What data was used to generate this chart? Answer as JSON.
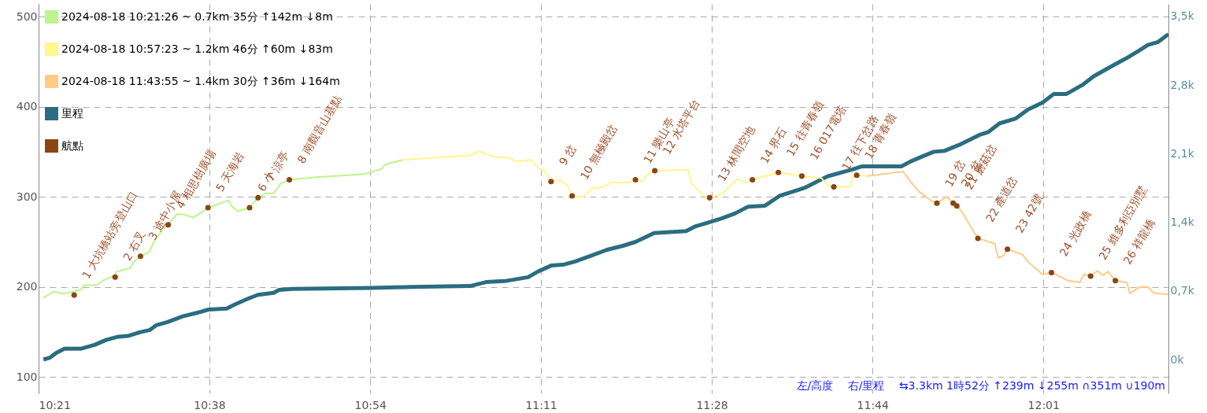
{
  "chart_data": {
    "type": "line",
    "xlim": [
      10.35,
      12.224
    ],
    "xticks": [
      {
        "value": 10.35,
        "label": "10:21"
      },
      {
        "value": 10.6333,
        "label": "10:38"
      },
      {
        "value": 10.9,
        "label": "10:54"
      },
      {
        "value": 11.1833,
        "label": "11:11"
      },
      {
        "value": 11.4667,
        "label": "11:28"
      },
      {
        "value": 11.7333,
        "label": "11:44"
      },
      {
        "value": 12.0167,
        "label": "12:01"
      }
    ],
    "ylim": [
      82,
      514
    ],
    "yticks": [
      100,
      200,
      300,
      400,
      500
    ],
    "y2lim": [
      -345,
      3628
    ],
    "y2ticks": [
      {
        "value": 0,
        "label": "0k"
      },
      {
        "value": 700,
        "label": "0,7k"
      },
      {
        "value": 1400,
        "label": "1,4k"
      },
      {
        "value": 2100,
        "label": "2,1k"
      },
      {
        "value": 2800,
        "label": "2,8k"
      },
      {
        "value": 3500,
        "label": "3,5k"
      }
    ],
    "grid": true,
    "legend": "top left",
    "annotations": [
      "左/高度　 右/里程　 ⇆3.3km 1時52分 ↑239m ↓255m ∩351m ∪190m",
      {
        "text": "1 大坑橋站旁登山口",
        "x": 10.409,
        "y": 191
      },
      {
        "text": "2 右叉",
        "x": 10.477,
        "y": 211
      },
      {
        "text": "3 途中小屋",
        "x": 10.519,
        "y": 234
      },
      {
        "text": "4 相思樹廣場",
        "x": 10.565,
        "y": 269
      },
      {
        "text": "5 天海岩",
        "x": 10.631,
        "y": 288
      },
      {
        "text": "6 小",
        "x": 10.7,
        "y": 288
      },
      {
        "text": "7 涼亭",
        "x": 10.714,
        "y": 299
      },
      {
        "text": "8 南觀音山基點",
        "x": 10.766,
        "y": 319
      },
      {
        "text": "9 岔",
        "x": 11.2,
        "y": 317
      },
      {
        "text": "10 無極殿岔",
        "x": 11.235,
        "y": 301
      },
      {
        "text": "11 樂山亭",
        "x": 11.34,
        "y": 319
      },
      {
        "text": "12 水塔平台",
        "x": 11.372,
        "y": 329
      },
      {
        "text": "13 林間空地",
        "x": 11.463,
        "y": 299
      },
      {
        "text": "14 界石",
        "x": 11.534,
        "y": 319
      },
      {
        "text": "15 往青春嶺",
        "x": 11.577,
        "y": 327
      },
      {
        "text": "16 017電塔",
        "x": 11.616,
        "y": 323
      },
      {
        "text": "17 往下岔路",
        "x": 11.669,
        "y": 311
      },
      {
        "text": "18 青春嶺",
        "x": 11.707,
        "y": 324
      },
      {
        "text": "19 岔",
        "x": 11.84,
        "y": 293
      },
      {
        "text": "20 岔",
        "x": 11.867,
        "y": 293
      },
      {
        "text": "21 蘑菇岔",
        "x": 11.873,
        "y": 290
      },
      {
        "text": "22 產道岔",
        "x": 11.908,
        "y": 254
      },
      {
        "text": "23 42號",
        "x": 11.957,
        "y": 242
      },
      {
        "text": "24 光政橋",
        "x": 12.03,
        "y": 216
      },
      {
        "text": "25 維多利亞別墅",
        "x": 12.095,
        "y": 212
      },
      {
        "text": "26 祥龍橋",
        "x": 12.136,
        "y": 207
      }
    ],
    "series": [
      {
        "name": "2024-08-18 10:21:26 ~ 0.7km 35分 ↑142m ↓8m",
        "color": "#bdf58c",
        "x": [
          10.358,
          10.375,
          10.387,
          10.397,
          10.42,
          10.426,
          10.446,
          10.459,
          10.476,
          10.48,
          10.502,
          10.508,
          10.519,
          10.534,
          10.541,
          10.554,
          10.567,
          10.58,
          10.593,
          10.606,
          10.616,
          10.632,
          10.665,
          10.671,
          10.68,
          10.7,
          10.714,
          10.727,
          10.74,
          10.752,
          10.766,
          10.814,
          10.889,
          10.919,
          10.925,
          10.954
        ],
        "values": [
          188,
          195,
          193,
          193,
          197,
          202,
          202,
          208,
          213,
          217,
          221,
          228,
          234,
          239,
          250,
          262,
          271,
          281,
          280,
          277,
          281,
          288,
          296,
          289,
          284,
          288,
          299,
          304,
          304,
          315,
          319,
          322,
          325,
          331,
          336,
          341
        ]
      },
      {
        "name": "2024-08-18 10:57:23 ~ 1.2km 46分 ↑60m ↓83m",
        "color": "#fff68c",
        "x": [
          10.954,
          11.066,
          11.082,
          11.092,
          11.112,
          11.131,
          11.143,
          11.166,
          11.179,
          11.19,
          11.2,
          11.214,
          11.227,
          11.235,
          11.253,
          11.267,
          11.287,
          11.3,
          11.329,
          11.34,
          11.351,
          11.362,
          11.372,
          11.427,
          11.433,
          11.453,
          11.463,
          11.483,
          11.509,
          11.522,
          11.534,
          11.561,
          11.577,
          11.616,
          11.648,
          11.659,
          11.669,
          11.697,
          11.7,
          11.707,
          11.725
        ],
        "values": [
          341,
          346,
          351,
          347,
          344,
          343,
          339,
          341,
          332,
          328,
          317,
          319,
          313,
          301,
          300,
          309,
          311,
          316,
          316,
          319,
          317,
          326,
          329,
          330,
          315,
          301,
          299,
          303,
          320,
          316,
          319,
          324,
          327,
          323,
          321,
          313,
          311,
          311,
          323,
          324,
          323
        ]
      },
      {
        "name": "2024-08-18 11:43:55 ~ 1.4km 30分 ↑36m ↓164m",
        "color": "#ffcc88",
        "x": [
          11.725,
          11.784,
          11.796,
          11.81,
          11.83,
          11.84,
          11.856,
          11.867,
          11.873,
          11.882,
          11.896,
          11.908,
          11.936,
          11.942,
          11.951,
          11.957,
          11.982,
          11.991,
          12.015,
          12.03,
          12.058,
          12.077,
          12.084,
          12.095,
          12.106,
          12.115,
          12.124,
          12.136,
          12.155,
          12.16,
          12.176,
          12.19,
          12.2,
          12.219,
          12.224
        ],
        "values": [
          323,
          328,
          317,
          306,
          296,
          293,
          300,
          293,
          290,
          283,
          267,
          254,
          248,
          232,
          235,
          242,
          236,
          228,
          214,
          216,
          207,
          205,
          214,
          212,
          218,
          213,
          217,
          207,
          205,
          193,
          200,
          200,
          193,
          192,
          192
        ]
      },
      {
        "name": "里程",
        "axis": "y2",
        "color": "#2b6d80",
        "x": [
          10.358,
          10.369,
          10.38,
          10.393,
          10.42,
          10.443,
          10.462,
          10.48,
          10.498,
          10.519,
          10.534,
          10.545,
          10.563,
          10.589,
          10.615,
          10.632,
          10.662,
          10.675,
          10.697,
          10.714,
          10.74,
          10.749,
          10.771,
          10.902,
          10.967,
          11.066,
          11.092,
          11.123,
          11.162,
          11.179,
          11.201,
          11.222,
          11.24,
          11.267,
          11.293,
          11.319,
          11.34,
          11.371,
          11.424,
          11.44,
          11.462,
          11.483,
          11.505,
          11.527,
          11.555,
          11.579,
          11.62,
          11.659,
          11.7,
          11.715,
          11.781,
          11.796,
          11.815,
          11.835,
          11.853,
          11.877,
          11.91,
          11.925,
          11.944,
          11.971,
          11.991,
          12.015,
          12.034,
          12.055,
          12.081,
          12.1,
          12.129,
          12.153,
          12.172,
          12.19,
          12.207,
          12.224
        ],
        "values": [
          0,
          20,
          70,
          110,
          110,
          150,
          200,
          230,
          240,
          280,
          300,
          350,
          380,
          440,
          480,
          510,
          520,
          560,
          620,
          660,
          680,
          710,
          720,
          730,
          740,
          750,
          790,
          800,
          840,
          900,
          960,
          970,
          1000,
          1060,
          1120,
          1160,
          1200,
          1290,
          1310,
          1360,
          1400,
          1440,
          1490,
          1560,
          1570,
          1670,
          1750,
          1870,
          1940,
          1970,
          1970,
          2020,
          2070,
          2120,
          2130,
          2190,
          2290,
          2320,
          2410,
          2460,
          2550,
          2620,
          2710,
          2710,
          2800,
          2890,
          2990,
          3070,
          3140,
          3210,
          3240,
          3320
        ]
      },
      {
        "name": "航點",
        "type": "scatter",
        "color": "#8b4513",
        "x": [
          10.409,
          10.477,
          10.519,
          10.565,
          10.631,
          10.7,
          10.714,
          10.766,
          11.2,
          11.235,
          11.34,
          11.372,
          11.463,
          11.534,
          11.577,
          11.616,
          11.669,
          11.707,
          11.84,
          11.867,
          11.873,
          11.908,
          11.957,
          12.03,
          12.095,
          12.136
        ],
        "values": [
          191,
          211,
          234,
          269,
          288,
          288,
          299,
          319,
          317,
          301,
          319,
          329,
          299,
          319,
          327,
          323,
          311,
          324,
          293,
          293,
          290,
          254,
          242,
          216,
          212,
          207
        ]
      }
    ]
  }
}
